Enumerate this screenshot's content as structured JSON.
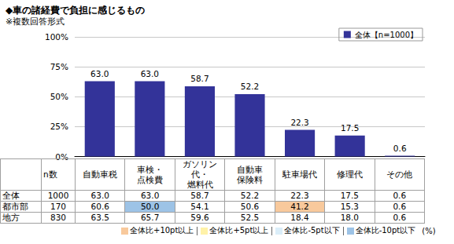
{
  "chart_data": {
    "type": "bar",
    "title": "◆車の諸経費で負担に感じるもの",
    "subtitle": "※複数回答形式",
    "categories": [
      "自動車税",
      "車検・\n点検費",
      "ガソリン代・\n燃料代",
      "自動車\n保険料",
      "駐車場代",
      "修理代",
      "その他"
    ],
    "series": [
      {
        "name": "全体【n=1000】",
        "color": "#333399",
        "values": [
          63.0,
          63.0,
          58.7,
          52.2,
          22.3,
          17.5,
          0.6
        ],
        "value_labels": [
          "63.0",
          "63.0",
          "58.7",
          "52.2",
          "22.3",
          "17.5",
          "0.6"
        ]
      }
    ],
    "ylim": [
      0,
      100
    ],
    "yticks": [
      {
        "value": 0,
        "label": "0%"
      },
      {
        "value": 25,
        "label": "25%"
      },
      {
        "value": 50,
        "label": "50%"
      },
      {
        "value": 75,
        "label": "75%"
      },
      {
        "value": 100,
        "label": "100%"
      }
    ],
    "grid": true,
    "legend": "upper right",
    "data_labels": true,
    "tick_labels": "y"
  },
  "table": {
    "n_header": "n数",
    "rows": [
      {
        "label": "全体",
        "n": "1000",
        "cells": [
          "63.0",
          "63.0",
          "58.7",
          "52.2",
          "22.3",
          "17.5",
          "0.6"
        ],
        "colors": [
          null,
          null,
          null,
          null,
          null,
          null,
          null
        ]
      },
      {
        "label": "都市部",
        "n": "170",
        "cells": [
          "60.6",
          "50.0",
          "54.1",
          "50.6",
          "41.2",
          "15.3",
          "0.6"
        ],
        "colors": [
          null,
          "#9dc3e6",
          null,
          null,
          "#f8c99c",
          null,
          null
        ]
      },
      {
        "label": "地方",
        "n": "830",
        "cells": [
          "63.5",
          "65.7",
          "59.6",
          "52.5",
          "18.4",
          "18.0",
          "0.6"
        ],
        "colors": [
          null,
          null,
          null,
          null,
          null,
          null,
          null
        ]
      }
    ]
  },
  "color_key": {
    "items": [
      {
        "label": "全体比+10pt以上",
        "color": "#f8c99c"
      },
      {
        "label": "全体比+5pt以上",
        "color": "#fff2a8"
      },
      {
        "label": "全体比-5pt以下",
        "color": "#dbeef9"
      },
      {
        "label": "全体比-10pt以下",
        "color": "#9dc3e6"
      }
    ],
    "unit": "(%)"
  }
}
